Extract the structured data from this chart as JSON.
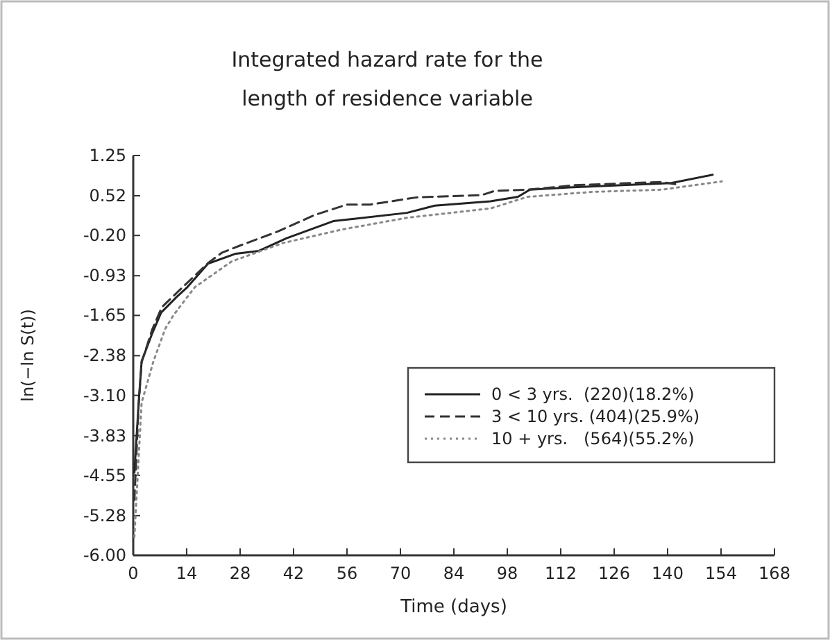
{
  "chart_data": {
    "type": "line",
    "title": "Integrated hazard rate for the\nlength of residence variable",
    "xlabel": "Time (days)",
    "ylabel": "ln(−ln S(t))",
    "xlim": [
      0,
      168
    ],
    "xticks": [
      0,
      14,
      28,
      42,
      56,
      70,
      84,
      98,
      112,
      126,
      140,
      154,
      168
    ],
    "ylim": [
      -6.0,
      1.25
    ],
    "yticks": [
      1.25,
      0.52,
      {
        "value": -0.2,
        "label": "-0.20"
      },
      -0.93,
      -1.65,
      -2.38,
      {
        "value": -3.1,
        "label": "-3.10"
      },
      -3.83,
      -4.55,
      -5.28,
      {
        "value": -6.0,
        "label": "-6.00"
      }
    ],
    "grid": false,
    "legend": "right",
    "series": [
      {
        "name": "0 < 3 yrs.  (220)(18.2%)",
        "color": "#222222",
        "line_style": "solid",
        "x": [
          0.3,
          1.5,
          2.2,
          5,
          7.3,
          11.6,
          14,
          19.6,
          26.9,
          32.9,
          40.2,
          52.4,
          71.7,
          79,
          93.6,
          100.8,
          103.9,
          114.2,
          140.9,
          151.8
        ],
        "values": [
          -4.5,
          -3.15,
          -2.48,
          -1.97,
          -1.6,
          -1.3,
          -1.15,
          -0.71,
          -0.53,
          -0.48,
          -0.25,
          0.06,
          0.21,
          0.34,
          0.42,
          0.5,
          0.63,
          0.67,
          0.75,
          0.9
        ]
      },
      {
        "name": "3 < 10 yrs. (404)(25.9%)",
        "color": "#333333",
        "line_style": "dashed",
        "x": [
          0.3,
          1.4,
          2.2,
          5,
          7.5,
          12,
          19.6,
          23.3,
          28.1,
          37.8,
          47.5,
          56,
          62.1,
          74.2,
          91.2,
          94.8,
          103.3,
          115.4,
          138.4,
          142
        ],
        "values": [
          -5.0,
          -3.3,
          -2.5,
          -1.9,
          -1.5,
          -1.2,
          -0.7,
          -0.51,
          -0.38,
          -0.13,
          0.17,
          0.36,
          0.36,
          0.49,
          0.53,
          0.61,
          0.63,
          0.71,
          0.77,
          0.73
        ]
      },
      {
        "name": "10 + yrs.   (564)(55.2%)",
        "color": "#888888",
        "line_style": "dotted",
        "x": [
          0.3,
          1.4,
          2.2,
          5.3,
          8.4,
          10.6,
          16.1,
          25.8,
          39.1,
          54.8,
          71.7,
          93.6,
          103.3,
          120.2,
          138.4,
          154.2
        ],
        "values": [
          -5.67,
          -4.25,
          -3.23,
          -2.48,
          -1.89,
          -1.64,
          -1.14,
          -0.67,
          -0.34,
          -0.09,
          0.12,
          0.29,
          0.5,
          0.59,
          0.63,
          0.78
        ]
      }
    ]
  }
}
